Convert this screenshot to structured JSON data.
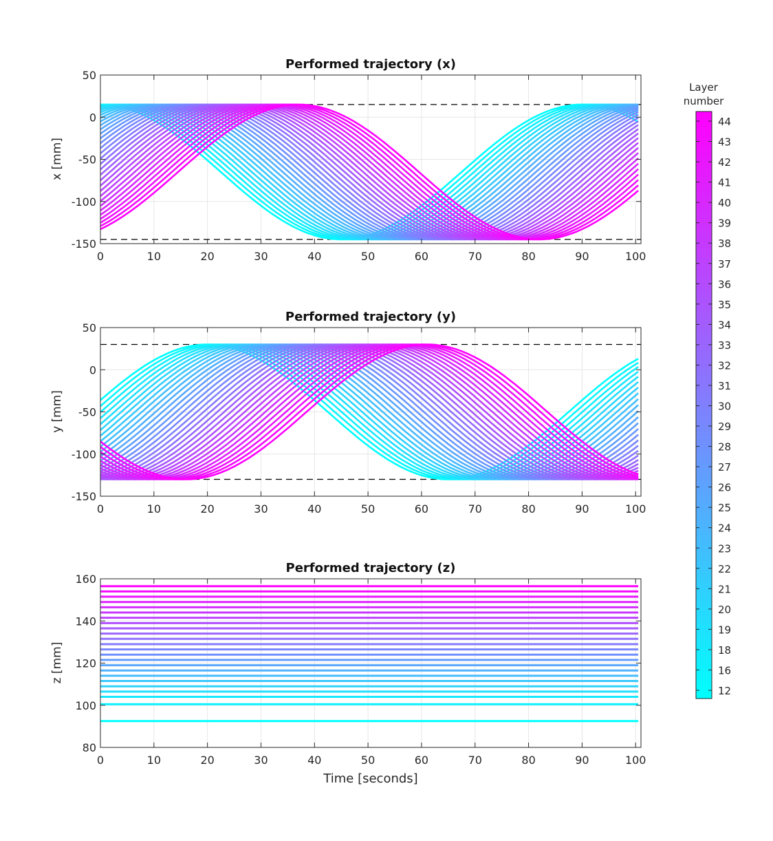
{
  "chart_data": [
    {
      "type": "line",
      "title": "Performed trajectory (x)",
      "xlabel": "",
      "ylabel": "x [mm]",
      "xlim": [
        0,
        101
      ],
      "ylim": [
        -150,
        50
      ],
      "xticks": [
        0,
        10,
        20,
        30,
        40,
        50,
        60,
        70,
        80,
        90,
        100
      ],
      "yticks": [
        -150,
        -100,
        -50,
        0,
        50
      ],
      "grid": true,
      "reference_lines": [
        15,
        -145
      ],
      "model": {
        "kind": "sinusoid",
        "center": -65,
        "amplitude": 80,
        "period": 90,
        "peak_time_first_layer": 0,
        "peak_time_last_layer": 37
      },
      "series_note": "One trajectory per layer (12-44), colored by layer number"
    },
    {
      "type": "line",
      "title": "Performed trajectory (y)",
      "xlabel": "",
      "ylabel": "y [mm]",
      "xlim": [
        0,
        101
      ],
      "ylim": [
        -150,
        50
      ],
      "xticks": [
        0,
        10,
        20,
        30,
        40,
        50,
        60,
        70,
        80,
        90,
        100
      ],
      "yticks": [
        -150,
        -100,
        -50,
        0,
        50
      ],
      "grid": true,
      "reference_lines": [
        30,
        -130
      ],
      "model": {
        "kind": "sinusoid",
        "center": -50,
        "amplitude": 80,
        "period": 90,
        "peak_time_first_layer": 20,
        "peak_time_last_layer": 61
      },
      "series_note": "One trajectory per layer (12-44), colored by layer number"
    },
    {
      "type": "line",
      "title": "Performed trajectory (z)",
      "xlabel": "Time [seconds]",
      "ylabel": "z [mm]",
      "xlim": [
        0,
        101
      ],
      "ylim": [
        80,
        160
      ],
      "xticks": [
        0,
        10,
        20,
        30,
        40,
        50,
        60,
        70,
        80,
        90,
        100
      ],
      "yticks": [
        80,
        100,
        120,
        140,
        160
      ],
      "grid": true,
      "z_levels": [
        92.5,
        100.5,
        104,
        106.5,
        109,
        111.5,
        114,
        116.5,
        119,
        121.5,
        124,
        126.5,
        129,
        131.5,
        134,
        136.5,
        139,
        141.5,
        144,
        146.5,
        149,
        151.5,
        154,
        156.5
      ]
    }
  ],
  "layers": {
    "first": 12,
    "last": 44,
    "count": 33
  },
  "colorbar": {
    "label_line1": "Layer",
    "label_line2": "number",
    "ticks": [
      "44",
      "43",
      "42",
      "41",
      "40",
      "39",
      "38",
      "37",
      "36",
      "35",
      "34",
      "33",
      "32",
      "31",
      "30",
      "29",
      "28",
      "27",
      "26",
      "25",
      "24",
      "23",
      "22",
      "21",
      "20",
      "19",
      "18",
      "16",
      "12"
    ],
    "color_low": "#00ffff",
    "color_high": "#ff00ff"
  },
  "colors": {
    "grid": "#e6e6e6",
    "axis": "#262626",
    "reference_line": "#000000"
  }
}
